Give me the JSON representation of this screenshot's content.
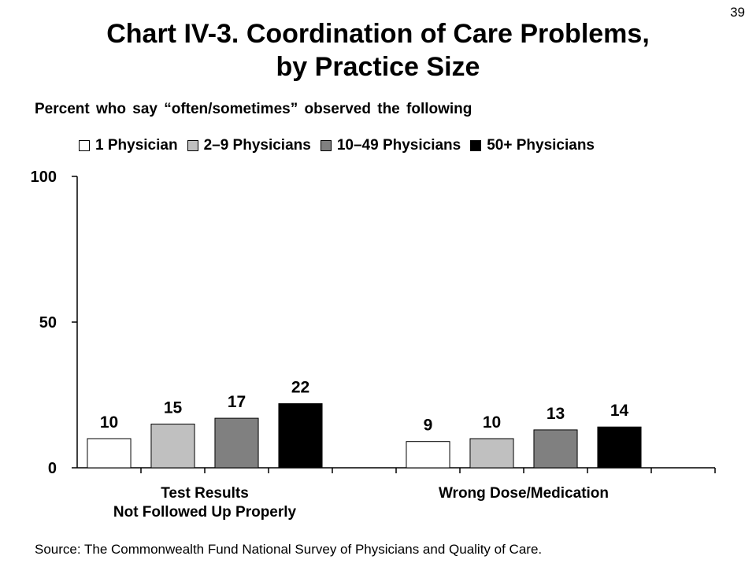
{
  "page_number": "39",
  "chart_data": {
    "type": "bar",
    "title_line1": "Chart IV-3. Coordination of Care Problems,",
    "title_line2": "by Practice Size",
    "subtitle": "Percent who say “often/sometimes” observed the following",
    "categories": [
      {
        "lines": [
          "Test Results",
          "Not Followed Up Properly"
        ]
      },
      {
        "lines": [
          "Wrong Dose/Medication"
        ]
      }
    ],
    "series": [
      {
        "name": "1 Physician",
        "color": "#ffffff",
        "values": [
          10,
          9
        ]
      },
      {
        "name": "2–9 Physicians",
        "color": "#c0c0c0",
        "values": [
          15,
          10
        ]
      },
      {
        "name": "10–49 Physicians",
        "color": "#808080",
        "values": [
          17,
          13
        ]
      },
      {
        "name": "50+ Physicians",
        "color": "#000000",
        "values": [
          22,
          14
        ]
      }
    ],
    "ylim": [
      0,
      100
    ],
    "yticks": [
      0,
      50,
      100
    ],
    "grid": false,
    "legend_position": "top"
  },
  "source": "Source: The Commonwealth Fund National Survey of Physicians and Quality of Care."
}
